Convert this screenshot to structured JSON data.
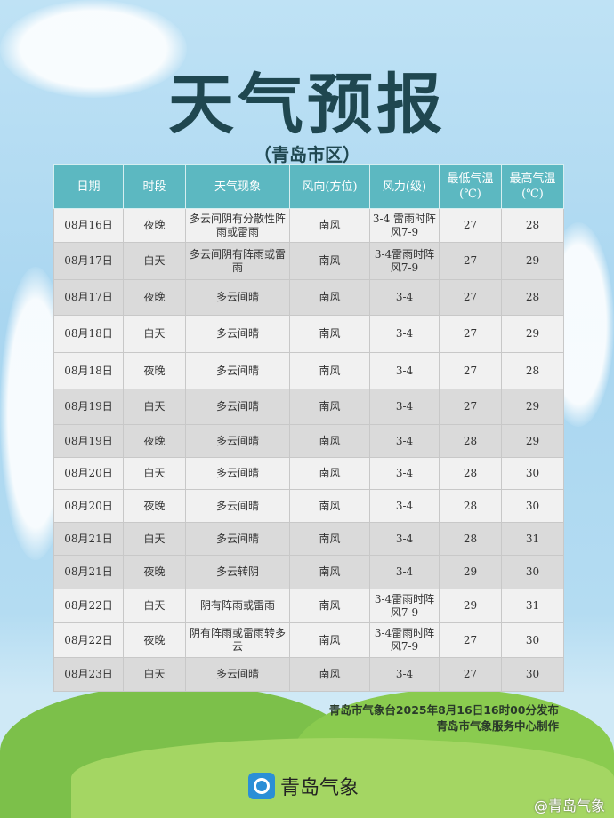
{
  "title": "天气预报",
  "subtitle": "（青岛市区）",
  "headers": [
    "日期",
    "时段",
    "天气现象",
    "风向(方位)",
    "风力(级)",
    "最低气温(℃)",
    "最高气温(℃)"
  ],
  "rows": [
    [
      "08月16日",
      "夜晚",
      "多云间阴有分散性阵雨或雷雨",
      "南风",
      "3-4 雷雨时阵风7-9",
      "27",
      "28"
    ],
    [
      "08月17日",
      "白天",
      "多云间阴有阵雨或雷雨",
      "南风",
      "3-4雷雨时阵风7-9",
      "27",
      "29"
    ],
    [
      "08月17日",
      "夜晚",
      "多云间晴",
      "南风",
      "3-4",
      "27",
      "28"
    ],
    [
      "08月18日",
      "白天",
      "多云间晴",
      "南风",
      "3-4",
      "27",
      "29"
    ],
    [
      "08月18日",
      "夜晚",
      "多云间晴",
      "南风",
      "3-4",
      "27",
      "28"
    ],
    [
      "08月19日",
      "白天",
      "多云间晴",
      "南风",
      "3-4",
      "27",
      "29"
    ],
    [
      "08月19日",
      "夜晚",
      "多云间晴",
      "南风",
      "3-4",
      "28",
      "29"
    ],
    [
      "08月20日",
      "白天",
      "多云间晴",
      "南风",
      "3-4",
      "28",
      "30"
    ],
    [
      "08月20日",
      "夜晚",
      "多云间晴",
      "南风",
      "3-4",
      "28",
      "30"
    ],
    [
      "08月21日",
      "白天",
      "多云间晴",
      "南风",
      "3-4",
      "28",
      "31"
    ],
    [
      "08月21日",
      "夜晚",
      "多云转阴",
      "南风",
      "3-4",
      "29",
      "30"
    ],
    [
      "08月22日",
      "白天",
      "阴有阵雨或雷雨",
      "南风",
      "3-4雷雨时阵风7-9",
      "29",
      "31"
    ],
    [
      "08月22日",
      "夜晚",
      "阴有阵雨或雷雨转多云",
      "南风",
      "3-4雷雨时阵风7-9",
      "27",
      "30"
    ],
    [
      "08月23日",
      "白天",
      "多云间晴",
      "南风",
      "3-4",
      "27",
      "30"
    ]
  ],
  "footer": {
    "line1": "青岛市气象台2025年8月16日16时00分发布",
    "line2": "青岛市气象服务中心制作"
  },
  "logo": "青岛气象",
  "weibo": "@青岛气象",
  "colors": {
    "header": "#5cb8c1",
    "title": "#1f4750"
  }
}
